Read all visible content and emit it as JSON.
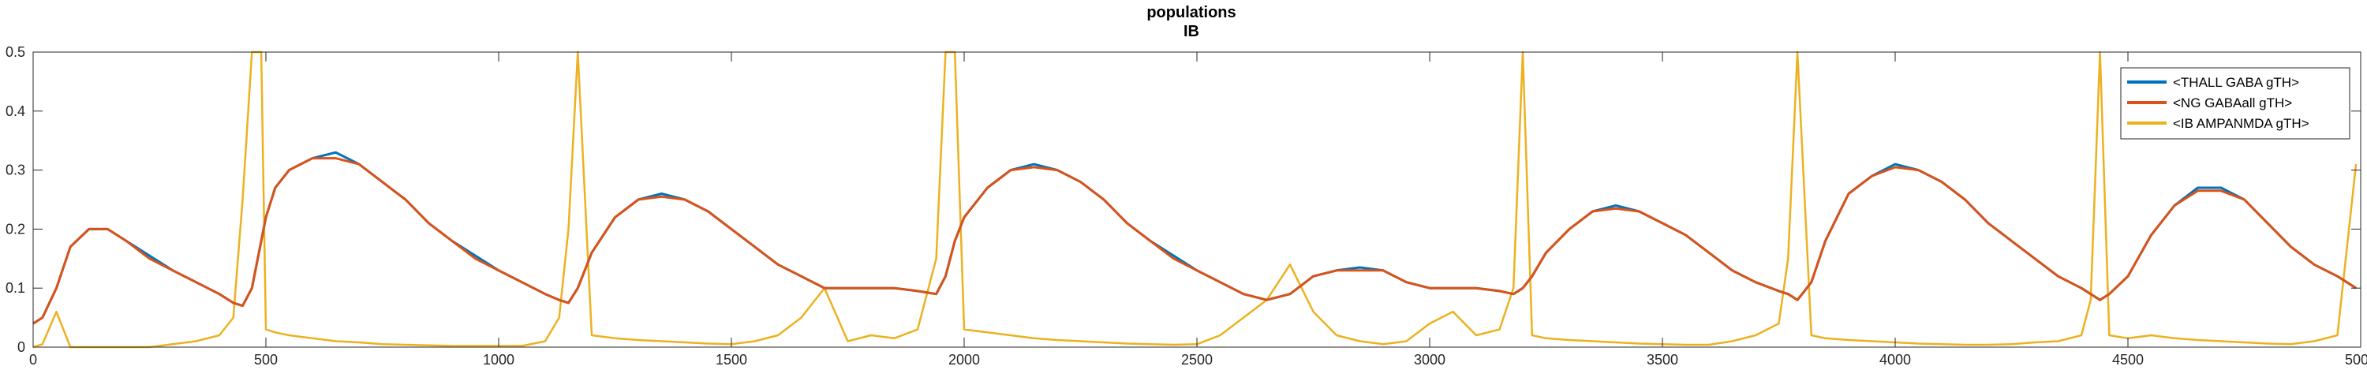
{
  "chart_data": {
    "type": "line",
    "title": "populations",
    "subtitle": "IB",
    "xlabel": "",
    "ylabel": "",
    "xlim": [
      0,
      5000
    ],
    "ylim": [
      0,
      0.5
    ],
    "x_ticks": [
      0,
      500,
      1000,
      1500,
      2000,
      2500,
      3000,
      3500,
      4000,
      4500,
      5000
    ],
    "y_ticks": [
      0,
      0.1,
      0.2,
      0.3,
      0.4,
      0.5
    ],
    "y_tick_labels": [
      "0",
      "0.1",
      "0.2",
      "0.3",
      "0.4",
      "0.5"
    ],
    "grid": false,
    "legend_position": "top-right",
    "x": [
      0,
      20,
      50,
      80,
      120,
      160,
      200,
      250,
      300,
      350,
      400,
      430,
      450,
      470,
      490,
      500,
      520,
      550,
      600,
      650,
      700,
      750,
      800,
      850,
      900,
      950,
      1000,
      1050,
      1100,
      1130,
      1150,
      1170,
      1200,
      1250,
      1300,
      1350,
      1400,
      1450,
      1500,
      1550,
      1600,
      1650,
      1700,
      1750,
      1800,
      1850,
      1900,
      1940,
      1960,
      1980,
      2000,
      2050,
      2100,
      2150,
      2200,
      2250,
      2300,
      2350,
      2400,
      2450,
      2500,
      2550,
      2600,
      2650,
      2700,
      2750,
      2800,
      2850,
      2900,
      2950,
      3000,
      3050,
      3100,
      3150,
      3180,
      3200,
      3220,
      3250,
      3300,
      3350,
      3400,
      3450,
      3500,
      3550,
      3600,
      3650,
      3700,
      3750,
      3770,
      3790,
      3820,
      3850,
      3900,
      3950,
      4000,
      4050,
      4100,
      4150,
      4200,
      4250,
      4300,
      4350,
      4400,
      4420,
      4440,
      4460,
      4500,
      4550,
      4600,
      4650,
      4700,
      4750,
      4800,
      4850,
      4900,
      4950,
      4990
    ],
    "series": [
      {
        "name": "<THALL GABA gTH>",
        "color": "#0072BD",
        "values": [
          0.04,
          0.05,
          0.1,
          0.17,
          0.2,
          0.2,
          0.18,
          0.155,
          0.13,
          0.11,
          0.09,
          0.075,
          0.07,
          0.1,
          0.18,
          0.22,
          0.27,
          0.3,
          0.32,
          0.33,
          0.31,
          0.28,
          0.25,
          0.21,
          0.18,
          0.155,
          0.13,
          0.11,
          0.09,
          0.08,
          0.075,
          0.1,
          0.16,
          0.22,
          0.25,
          0.26,
          0.25,
          0.23,
          0.2,
          0.17,
          0.14,
          0.12,
          0.1,
          0.1,
          0.1,
          0.1,
          0.095,
          0.09,
          0.12,
          0.18,
          0.22,
          0.27,
          0.3,
          0.31,
          0.3,
          0.28,
          0.25,
          0.21,
          0.18,
          0.155,
          0.13,
          0.11,
          0.09,
          0.08,
          0.09,
          0.12,
          0.13,
          0.135,
          0.13,
          0.11,
          0.1,
          0.1,
          0.1,
          0.095,
          0.09,
          0.1,
          0.12,
          0.16,
          0.2,
          0.23,
          0.24,
          0.23,
          0.21,
          0.19,
          0.16,
          0.13,
          0.11,
          0.095,
          0.09,
          0.08,
          0.11,
          0.18,
          0.26,
          0.29,
          0.31,
          0.3,
          0.28,
          0.25,
          0.21,
          0.18,
          0.15,
          0.12,
          0.1,
          0.09,
          0.08,
          0.09,
          0.12,
          0.19,
          0.24,
          0.27,
          0.27,
          0.25,
          0.21,
          0.17,
          0.14,
          0.12,
          0.1
        ]
      },
      {
        "name": "<NG GABAall gTH>",
        "color": "#D95319",
        "values": [
          0.04,
          0.05,
          0.1,
          0.17,
          0.2,
          0.2,
          0.18,
          0.15,
          0.13,
          0.11,
          0.09,
          0.075,
          0.07,
          0.1,
          0.18,
          0.22,
          0.27,
          0.3,
          0.32,
          0.32,
          0.31,
          0.28,
          0.25,
          0.21,
          0.18,
          0.15,
          0.13,
          0.11,
          0.09,
          0.08,
          0.075,
          0.1,
          0.16,
          0.22,
          0.25,
          0.255,
          0.25,
          0.23,
          0.2,
          0.17,
          0.14,
          0.12,
          0.1,
          0.1,
          0.1,
          0.1,
          0.095,
          0.09,
          0.12,
          0.18,
          0.22,
          0.27,
          0.3,
          0.305,
          0.3,
          0.28,
          0.25,
          0.21,
          0.18,
          0.15,
          0.13,
          0.11,
          0.09,
          0.08,
          0.09,
          0.12,
          0.13,
          0.13,
          0.13,
          0.11,
          0.1,
          0.1,
          0.1,
          0.095,
          0.09,
          0.1,
          0.12,
          0.16,
          0.2,
          0.23,
          0.235,
          0.23,
          0.21,
          0.19,
          0.16,
          0.13,
          0.11,
          0.095,
          0.09,
          0.08,
          0.11,
          0.18,
          0.26,
          0.29,
          0.305,
          0.3,
          0.28,
          0.25,
          0.21,
          0.18,
          0.15,
          0.12,
          0.1,
          0.09,
          0.08,
          0.09,
          0.12,
          0.19,
          0.24,
          0.265,
          0.265,
          0.25,
          0.21,
          0.17,
          0.14,
          0.12,
          0.1
        ]
      },
      {
        "name": "<IB AMPANMDA gTH>",
        "color": "#EDB120",
        "values": [
          0.0,
          0.005,
          0.06,
          0.0,
          0.0,
          0.0,
          0.0,
          0.0,
          0.005,
          0.01,
          0.02,
          0.05,
          0.25,
          0.5,
          0.5,
          0.03,
          0.025,
          0.02,
          0.015,
          0.01,
          0.008,
          0.005,
          0.004,
          0.003,
          0.002,
          0.002,
          0.002,
          0.002,
          0.01,
          0.05,
          0.2,
          0.5,
          0.02,
          0.015,
          0.012,
          0.01,
          0.008,
          0.006,
          0.005,
          0.01,
          0.02,
          0.05,
          0.1,
          0.01,
          0.02,
          0.015,
          0.03,
          0.15,
          0.5,
          0.5,
          0.03,
          0.025,
          0.02,
          0.015,
          0.012,
          0.01,
          0.008,
          0.006,
          0.005,
          0.004,
          0.005,
          0.02,
          0.05,
          0.08,
          0.14,
          0.06,
          0.02,
          0.01,
          0.005,
          0.01,
          0.04,
          0.06,
          0.02,
          0.03,
          0.1,
          0.5,
          0.02,
          0.015,
          0.012,
          0.01,
          0.008,
          0.006,
          0.005,
          0.004,
          0.004,
          0.01,
          0.02,
          0.04,
          0.15,
          0.5,
          0.02,
          0.015,
          0.012,
          0.01,
          0.008,
          0.006,
          0.005,
          0.004,
          0.004,
          0.005,
          0.008,
          0.01,
          0.02,
          0.08,
          0.5,
          0.02,
          0.015,
          0.02,
          0.015,
          0.012,
          0.01,
          0.008,
          0.006,
          0.005,
          0.01,
          0.02,
          0.31
        ]
      }
    ]
  }
}
